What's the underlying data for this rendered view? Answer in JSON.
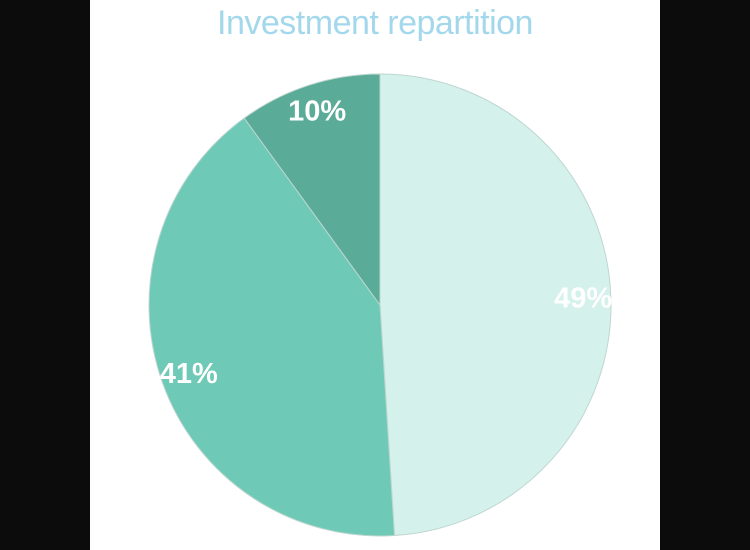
{
  "chart_data": {
    "type": "pie",
    "title": "Investment repartition",
    "title_color": "#a3d8ec",
    "start_angle_deg": 0,
    "direction": "clockwise",
    "slices": [
      {
        "value": 49,
        "label": "49%",
        "color": "#d4f1eb"
      },
      {
        "value": 41,
        "label": "41%",
        "color": "#6ecab6"
      },
      {
        "value": 10,
        "label": "10%",
        "color": "#5aab98"
      }
    ],
    "legend": "none"
  },
  "colors": {
    "frame_background": "#ffffff",
    "outer_background": "#0c0c0c",
    "slice_stroke": "#bfd6d0"
  }
}
